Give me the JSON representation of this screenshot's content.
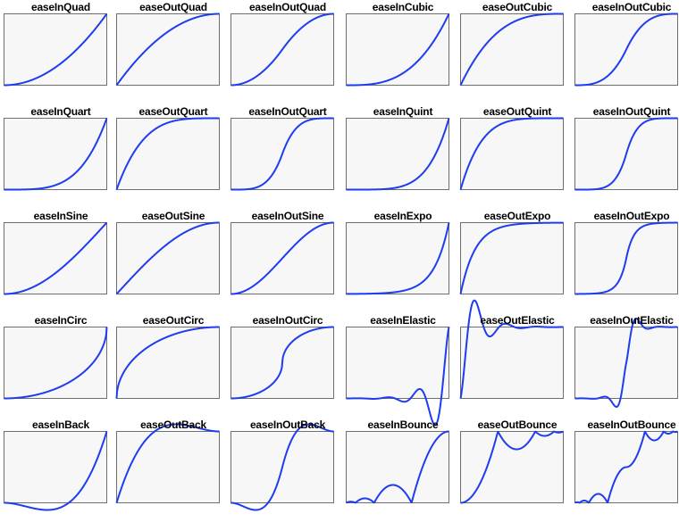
{
  "chart_data": {
    "type": "line",
    "xlim": [
      0,
      1
    ],
    "ylim": [
      0,
      1
    ],
    "grid": false,
    "style": {
      "curve_color": "#1e3cf0",
      "frame_color": "#6e6e6e",
      "panel_bg": "#f7f7f7"
    },
    "panels": [
      {
        "name": "easeInQuad"
      },
      {
        "name": "easeOutQuad"
      },
      {
        "name": "easeInOutQuad"
      },
      {
        "name": "easeInCubic"
      },
      {
        "name": "easeOutCubic"
      },
      {
        "name": "easeInOutCubic"
      },
      {
        "name": "easeInQuart"
      },
      {
        "name": "easeOutQuart"
      },
      {
        "name": "easeInOutQuart"
      },
      {
        "name": "easeInQuint"
      },
      {
        "name": "easeOutQuint"
      },
      {
        "name": "easeInOutQuint"
      },
      {
        "name": "easeInSine"
      },
      {
        "name": "easeOutSine"
      },
      {
        "name": "easeInOutSine"
      },
      {
        "name": "easeInExpo"
      },
      {
        "name": "easeOutExpo"
      },
      {
        "name": "easeInOutExpo"
      },
      {
        "name": "easeInCirc"
      },
      {
        "name": "easeOutCirc"
      },
      {
        "name": "easeInOutCirc"
      },
      {
        "name": "easeInElastic"
      },
      {
        "name": "easeOutElastic"
      },
      {
        "name": "easeInOutElastic"
      },
      {
        "name": "easeInBack"
      },
      {
        "name": "easeOutBack"
      },
      {
        "name": "easeInOutBack"
      },
      {
        "name": "easeInBounce"
      },
      {
        "name": "easeOutBounce"
      },
      {
        "name": "easeInOutBounce"
      }
    ]
  }
}
